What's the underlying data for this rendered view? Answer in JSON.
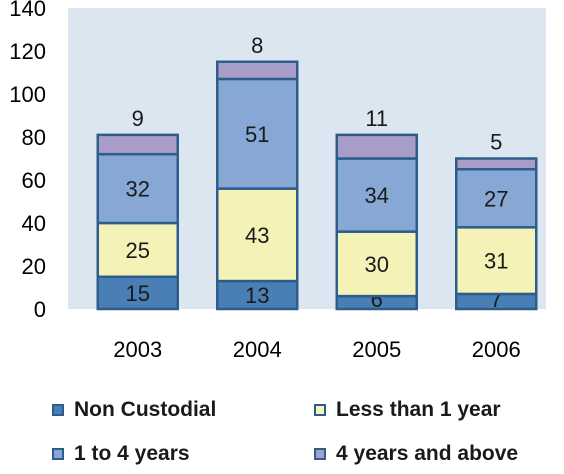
{
  "chart_data": {
    "type": "bar",
    "stacked": true,
    "categories": [
      "2003",
      "2004",
      "2005",
      "2006"
    ],
    "series": [
      {
        "name": "Non Custodial",
        "values": [
          15,
          13,
          6,
          7
        ],
        "color": "#4a7fb5"
      },
      {
        "name": "Less than 1 year",
        "values": [
          25,
          43,
          30,
          31
        ],
        "color": "#f5f2b8"
      },
      {
        "name": "1 to 4 years",
        "values": [
          32,
          51,
          34,
          27
        ],
        "color": "#87a8d4"
      },
      {
        "name": "4 years and above",
        "values": [
          9,
          8,
          11,
          5
        ],
        "color": "#a89cc8"
      }
    ],
    "ylim": [
      0,
      140
    ],
    "yticks": [
      "0",
      "20",
      "40",
      "60",
      "80",
      "100",
      "120",
      "140"
    ],
    "ytick_values": [
      0,
      20,
      40,
      60,
      80,
      100,
      120,
      140
    ],
    "grid": false,
    "plot_background": "#dce6f1",
    "bar_border_color": "#2e5d8c",
    "legend_position": "bottom"
  }
}
